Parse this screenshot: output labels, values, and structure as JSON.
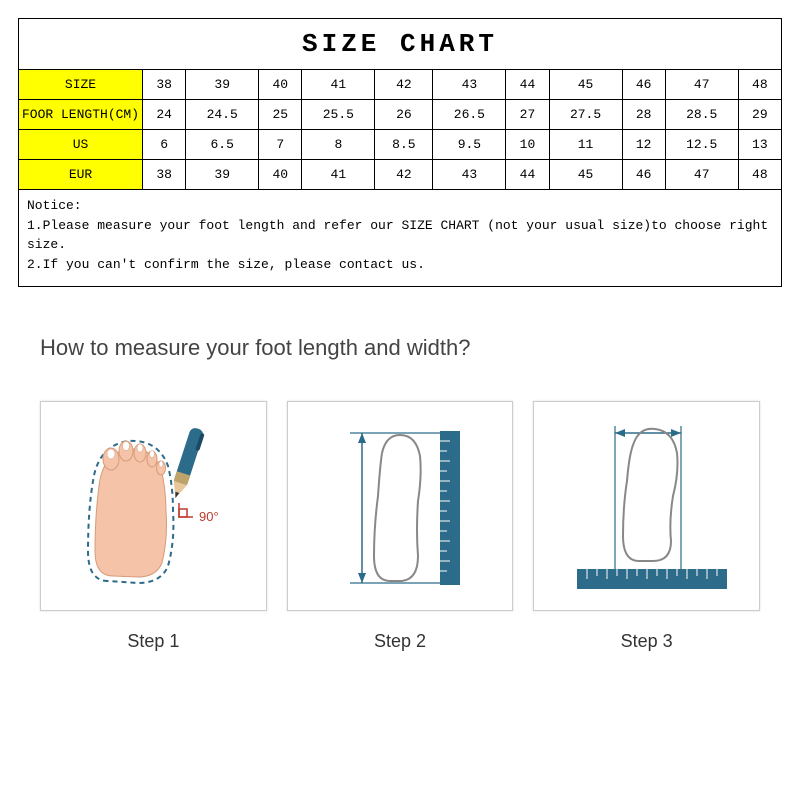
{
  "chart": {
    "title": "SIZE CHART",
    "labels": [
      "SIZE",
      "FOOR LENGTH(CM)",
      "US",
      "EUR"
    ],
    "columns": [
      "38",
      "39",
      "40",
      "41",
      "42",
      "43",
      "44",
      "45",
      "46",
      "47",
      "48"
    ],
    "rows": [
      [
        "38",
        "39",
        "40",
        "41",
        "42",
        "43",
        "44",
        "45",
        "46",
        "47",
        "48"
      ],
      [
        "24",
        "24.5",
        "25",
        "25.5",
        "26",
        "26.5",
        "27",
        "27.5",
        "28",
        "28.5",
        "29"
      ],
      [
        "6",
        "6.5",
        "7",
        "8",
        "8.5",
        "9.5",
        "10",
        "11",
        "12",
        "12.5",
        "13"
      ],
      [
        "38",
        "39",
        "40",
        "41",
        "42",
        "43",
        "44",
        "45",
        "46",
        "47",
        "48"
      ]
    ],
    "label_bg": "#ffff00",
    "border_color": "#000000",
    "font": "Courier New",
    "cell_fontsize": 13
  },
  "notice": {
    "heading": "Notice:",
    "lines": [
      "1.Please measure your foot length and refer our SIZE CHART (not your usual size)to choose right size.",
      "2.If you can't confirm the size, please contact us."
    ]
  },
  "howto": {
    "title": "How to measure your foot length and width?",
    "title_fontsize": 22,
    "title_color": "#444444",
    "steps": [
      {
        "label": "Step 1"
      },
      {
        "label": "Step 2"
      },
      {
        "label": "Step 3"
      }
    ],
    "step_label_fontsize": 18,
    "illustration": {
      "ruler_color": "#2d6b8a",
      "outline_color": "#888888",
      "skin_color": "#f5c3a8",
      "dash_color": "#2d6b8a",
      "angle_text": "90°"
    }
  }
}
